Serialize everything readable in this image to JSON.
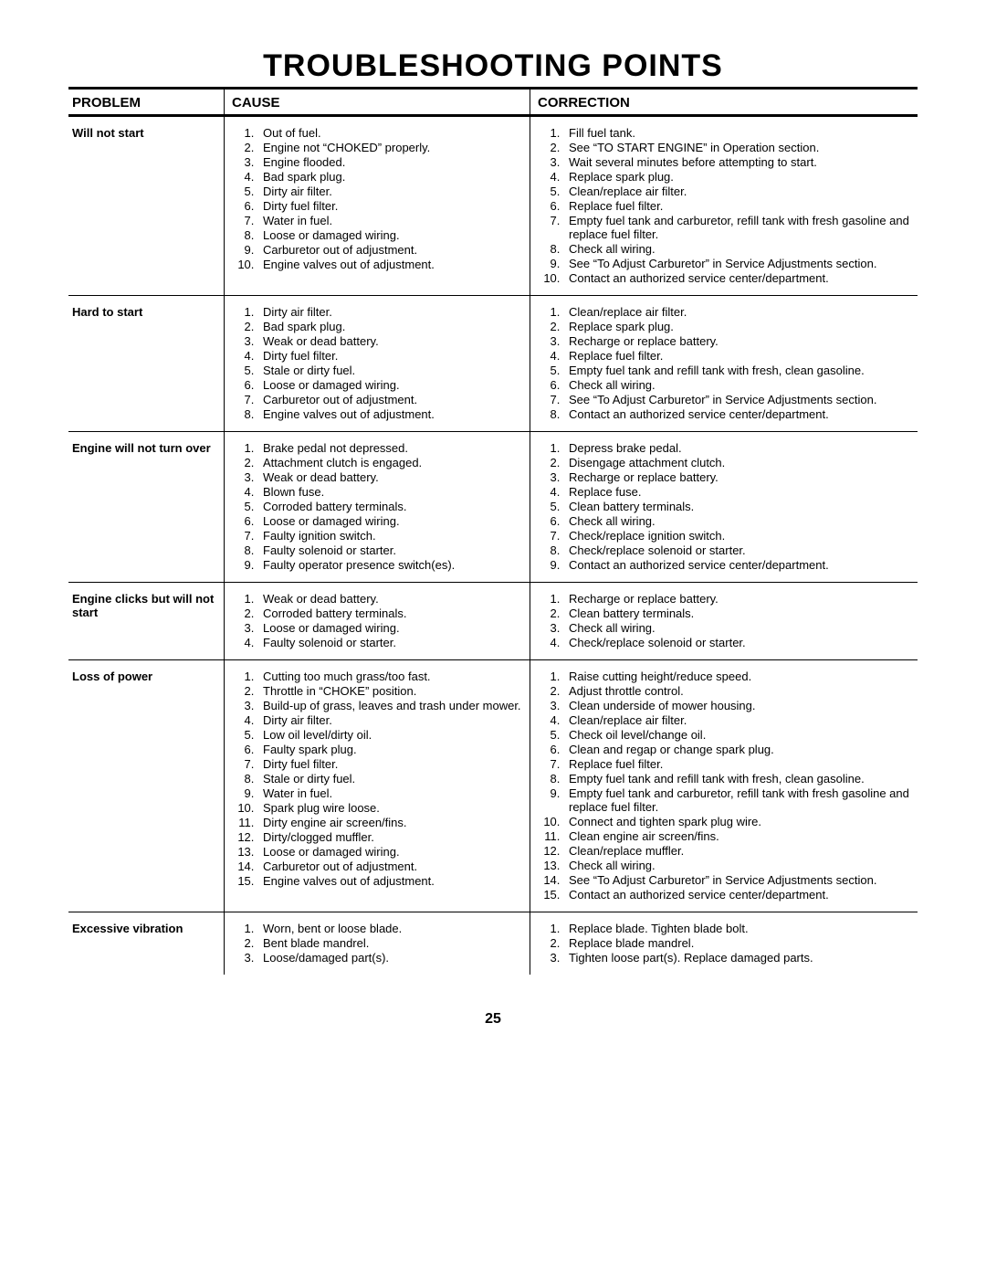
{
  "title": "TROUBLESHOOTING POINTS",
  "title_fontsize": 34,
  "body_fontsize": 13,
  "header_fontsize": 15,
  "page_number": "25",
  "page_number_fontsize": 16,
  "colors": {
    "text": "#000000",
    "background": "#ffffff",
    "border": "#000000"
  },
  "headers": {
    "problem": "PROBLEM",
    "cause": "CAUSE",
    "correction": "CORRECTION"
  },
  "rows": [
    {
      "problem": "Will not start",
      "cause": [
        "Out of fuel.",
        "Engine not “CHOKED” properly.",
        "Engine flooded.",
        "Bad spark plug.",
        "Dirty air filter.",
        "Dirty fuel filter.",
        "Water in fuel.",
        "Loose or damaged wiring.",
        "Carburetor out of adjustment.",
        "Engine valves out of adjustment."
      ],
      "correction": [
        "Fill fuel tank.",
        "See “TO START ENGINE” in Operation section.",
        "Wait several minutes before attempting to start.",
        "Replace spark plug.",
        "Clean/replace air filter.",
        "Replace fuel filter.",
        "Empty fuel tank and carburetor, refill tank with fresh gasoline and replace fuel filter.",
        "Check all wiring.",
        "See “To Adjust Carburetor” in Service Adjustments section.",
        "Contact an authorized service center/department."
      ]
    },
    {
      "problem": "Hard to start",
      "cause": [
        "Dirty air filter.",
        "Bad spark plug.",
        "Weak or dead battery.",
        "Dirty fuel filter.",
        "Stale or dirty fuel.",
        "Loose or damaged wiring.",
        "Carburetor out of adjustment.",
        "Engine valves out of adjustment."
      ],
      "correction": [
        "Clean/replace air filter.",
        "Replace spark plug.",
        "Recharge or replace battery.",
        "Replace fuel filter.",
        "Empty fuel tank and refill tank with fresh, clean gasoline.",
        "Check all wiring.",
        "See “To Adjust Carburetor” in Service Adjustments section.",
        "Contact an authorized service center/department."
      ]
    },
    {
      "problem": "Engine will not turn over",
      "cause": [
        "Brake pedal not depressed.",
        "Attachment clutch is engaged.",
        "Weak or dead battery.",
        "Blown fuse.",
        "Corroded battery terminals.",
        "Loose or damaged wiring.",
        "Faulty ignition switch.",
        "Faulty solenoid or starter.",
        "Faulty operator presence switch(es)."
      ],
      "correction": [
        "Depress brake pedal.",
        "Disengage attachment clutch.",
        "Recharge or replace battery.",
        "Replace fuse.",
        "Clean battery terminals.",
        "Check all wiring.",
        "Check/replace ignition switch.",
        "Check/replace solenoid or starter.",
        "Contact an authorized service center/department."
      ]
    },
    {
      "problem": "Engine clicks but will not start",
      "cause": [
        "Weak or dead battery.",
        "Corroded battery terminals.",
        "Loose or damaged wiring.",
        "Faulty solenoid or starter."
      ],
      "correction": [
        "Recharge or replace battery.",
        "Clean battery terminals.",
        "Check all wiring.",
        "Check/replace solenoid or starter."
      ]
    },
    {
      "problem": "Loss of power",
      "cause": [
        "Cutting too much grass/too fast.",
        "Throttle in “CHOKE” position.",
        "Build-up of grass, leaves and trash under mower.",
        "Dirty air filter.",
        "Low oil level/dirty oil.",
        "Faulty spark plug.",
        "Dirty fuel filter.",
        "Stale or dirty fuel.",
        "Water in fuel.",
        "Spark plug wire loose.",
        "Dirty engine air screen/fins.",
        "Dirty/clogged muffler.",
        "Loose or damaged wiring.",
        "Carburetor out of adjustment.",
        "Engine valves out of adjustment."
      ],
      "correction": [
        "Raise cutting height/reduce speed.",
        "Adjust throttle control.",
        "Clean underside of mower housing.",
        "Clean/replace air filter.",
        "Check oil level/change oil.",
        "Clean and regap or change spark plug.",
        "Replace fuel filter.",
        "Empty fuel tank and refill tank with fresh, clean gasoline.",
        "Empty fuel tank and carburetor, refill tank with fresh gasoline and replace fuel filter.",
        "Connect and tighten spark plug wire.",
        "Clean engine air screen/fins.",
        "Clean/replace muffler.",
        "Check all wiring.",
        "See “To Adjust Carburetor” in Service Adjustments section.",
        "Contact an authorized service center/department."
      ]
    },
    {
      "problem": "Excessive vibration",
      "cause": [
        "Worn, bent or loose blade.",
        "Bent blade mandrel.",
        "Loose/damaged part(s)."
      ],
      "correction": [
        "Replace blade.  Tighten blade bolt.",
        "Replace blade mandrel.",
        "Tighten loose part(s).  Replace damaged parts."
      ]
    }
  ]
}
